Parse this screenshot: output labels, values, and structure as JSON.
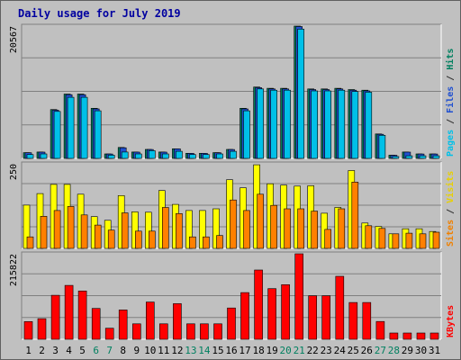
{
  "chart_data": {
    "title": "Daily usage for July 2019",
    "categories": [
      "1",
      "2",
      "3",
      "4",
      "5",
      "6",
      "7",
      "8",
      "9",
      "10",
      "11",
      "12",
      "13",
      "14",
      "15",
      "16",
      "17",
      "18",
      "19",
      "20",
      "21",
      "22",
      "23",
      "24",
      "25",
      "26",
      "27",
      "28",
      "29",
      "30",
      "31"
    ],
    "weekend_days": [
      "6",
      "7",
      "13",
      "14",
      "20",
      "21",
      "27",
      "28"
    ],
    "panels": [
      {
        "id": "pages-files-hits",
        "type": "bar",
        "max_label": "20567",
        "ylim": [
          0,
          20567
        ],
        "ylabel_parts": [
          {
            "text": "Pages",
            "color": "#00c0e8"
          },
          {
            "text": " / ",
            "color": "#303030"
          },
          {
            "text": "Files",
            "color": "#2050d0"
          },
          {
            "text": " / ",
            "color": "#303030"
          },
          {
            "text": "Hits",
            "color": "#008060"
          }
        ],
        "series": [
          {
            "name": "Hits",
            "color": "#008060",
            "values": [
              900,
              1000,
              7600,
              10000,
              10000,
              7800,
              700,
              1700,
              1000,
              1400,
              1000,
              1500,
              800,
              800,
              900,
              1400,
              7800,
              11100,
              10900,
              10900,
              20600,
              10800,
              10800,
              10900,
              10700,
              10600,
              3800,
              500,
              1000,
              700,
              700
            ]
          },
          {
            "name": "Files",
            "color": "#2050d0",
            "values": [
              880,
              980,
              7500,
              9900,
              9900,
              7700,
              690,
              1650,
              980,
              1380,
              980,
              1480,
              790,
              790,
              880,
              1380,
              7700,
              11000,
              10800,
              10800,
              20500,
              10700,
              10700,
              10800,
              10600,
              10500,
              3750,
              490,
              980,
              690,
              690
            ]
          },
          {
            "name": "Pages",
            "color": "#00c0e8",
            "values": [
              600,
              700,
              7300,
              9500,
              9500,
              7400,
              500,
              1000,
              700,
              1200,
              700,
              1100,
              600,
              600,
              700,
              1100,
              7400,
              10800,
              10600,
              10600,
              20100,
              10500,
              10500,
              10600,
              10400,
              10300,
              3600,
              300,
              400,
              400,
              400
            ]
          }
        ]
      },
      {
        "id": "visits-sites",
        "type": "bar",
        "max_label": "250",
        "ylim": [
          0,
          250
        ],
        "ylabel_parts": [
          {
            "text": "Sites",
            "color": "#f08000"
          },
          {
            "text": " / ",
            "color": "#303030"
          },
          {
            "text": "Visits",
            "color": "#e8d000"
          }
        ],
        "series": [
          {
            "name": "Visits",
            "color": "#ffff00",
            "values": [
              128,
              162,
              189,
              189,
              160,
              94,
              83,
              156,
              108,
              107,
              171,
              130,
              112,
              112,
              117,
              203,
              179,
              247,
              191,
              187,
              184,
              185,
              104,
              121,
              230,
              75,
              65,
              43,
              58,
              58,
              50
            ]
          },
          {
            "name": "Sites",
            "color": "#ff8000",
            "values": [
              34,
              95,
              112,
              124,
              99,
              69,
              54,
              105,
              51,
              51,
              121,
              103,
              34,
              34,
              38,
              143,
              112,
              160,
              127,
              117,
              117,
              110,
              56,
              117,
              196,
              67,
              59,
              43,
              45,
              43,
              48
            ]
          }
        ]
      },
      {
        "id": "kbytes",
        "type": "bar",
        "max_label": "215822",
        "ylim": [
          0,
          215822
        ],
        "ylabel_parts": [
          {
            "text": "KBytes",
            "color": "#ff0000"
          }
        ],
        "series": [
          {
            "name": "KBytes",
            "color": "#ff0000",
            "values": [
              44700,
              52000,
              111000,
              136000,
              122000,
              78000,
              28000,
              74000,
              39000,
              94000,
              39000,
              90000,
              39000,
              39000,
              39000,
              79000,
              118000,
              175000,
              128000,
              138000,
              218000,
              110000,
              110000,
              159000,
              93000,
              93000,
              45000,
              16000,
              16000,
              16000,
              16000
            ]
          }
        ]
      }
    ]
  }
}
